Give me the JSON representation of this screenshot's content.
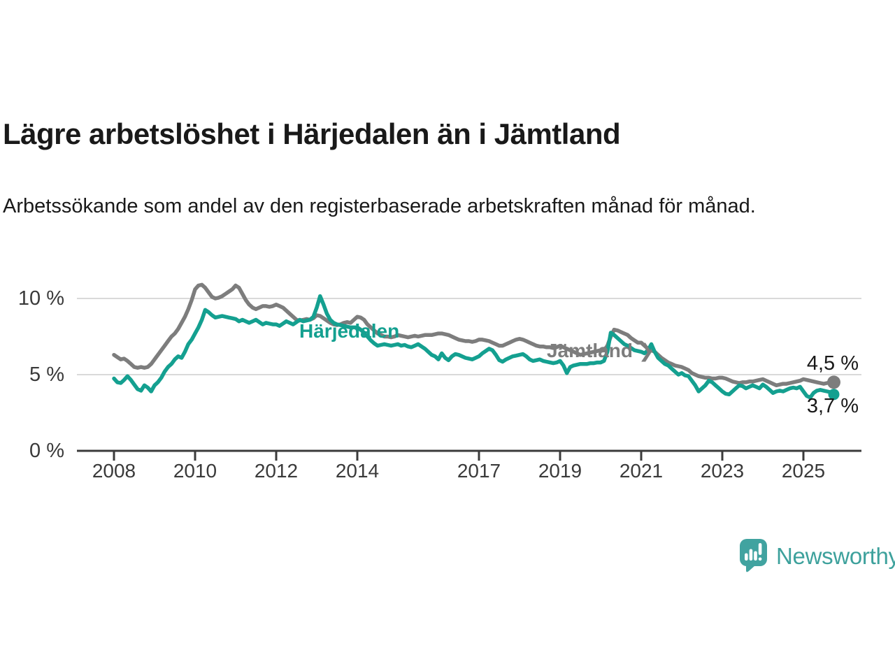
{
  "header": {
    "title": "Lägre arbetslöshet i Härjedalen än i Jämtland",
    "subtitle": "Arbetssökande som andel av den registerbaserade arbetskraften månad för månad."
  },
  "annotations": {
    "arrow_glyph": "❯"
  },
  "footer": {
    "brand": "Newsworthy"
  },
  "colors": {
    "harjedalen": "#14a090",
    "jamtland": "#7d7d7d",
    "axis": "#3b3b3b",
    "grid": "#d9d9d9",
    "text": "#191919",
    "logo": "#3da19c"
  },
  "chart_data": {
    "type": "line",
    "title": "Lägre arbetslöshet i Härjedalen än i Jämtland",
    "xlabel": "",
    "ylabel": "Arbetssökande som andel av den registerbaserade arbetskraften",
    "x_unit": "month",
    "x_start": "2008-01",
    "x_end": "2025-10",
    "x_range_years": [
      2008,
      2026.4
    ],
    "ylim": [
      0,
      11.5
    ],
    "grid": "horizontal",
    "legend_position": "inline-labels",
    "x_ticks": [
      2008,
      2010,
      2012,
      2014,
      2017,
      2019,
      2021,
      2023,
      2025
    ],
    "y_ticks": [
      {
        "value": 0,
        "label": "0 %"
      },
      {
        "value": 5,
        "label": "5 %"
      },
      {
        "value": 10,
        "label": "10 %"
      }
    ],
    "series": [
      {
        "name": "Jämtland",
        "color": "#7d7d7d",
        "end_value": 4.5,
        "end_label": "4,5 %",
        "values": [
          6.3,
          6.15,
          6.0,
          6.05,
          5.9,
          5.7,
          5.5,
          5.45,
          5.5,
          5.45,
          5.5,
          5.7,
          6.0,
          6.3,
          6.6,
          6.9,
          7.2,
          7.5,
          7.7,
          8.0,
          8.4,
          8.8,
          9.3,
          9.9,
          10.6,
          10.85,
          10.9,
          10.7,
          10.4,
          10.1,
          10.0,
          10.05,
          10.15,
          10.3,
          10.45,
          10.6,
          10.85,
          10.7,
          10.3,
          9.9,
          9.6,
          9.4,
          9.3,
          9.4,
          9.5,
          9.5,
          9.45,
          9.5,
          9.6,
          9.5,
          9.4,
          9.2,
          9.0,
          8.8,
          8.6,
          8.55,
          8.6,
          8.65,
          8.6,
          8.7,
          8.9,
          8.85,
          8.7,
          8.55,
          8.4,
          8.3,
          8.25,
          8.3,
          8.4,
          8.45,
          8.4,
          8.6,
          8.8,
          8.75,
          8.6,
          8.3,
          8.1,
          7.9,
          7.7,
          7.6,
          7.5,
          7.5,
          7.45,
          7.5,
          7.6,
          7.55,
          7.5,
          7.45,
          7.5,
          7.55,
          7.5,
          7.55,
          7.6,
          7.6,
          7.6,
          7.65,
          7.7,
          7.7,
          7.65,
          7.6,
          7.5,
          7.4,
          7.3,
          7.25,
          7.2,
          7.2,
          7.15,
          7.2,
          7.3,
          7.3,
          7.25,
          7.2,
          7.1,
          7.0,
          6.9,
          6.9,
          7.0,
          7.1,
          7.2,
          7.3,
          7.35,
          7.3,
          7.2,
          7.1,
          7.0,
          6.9,
          6.85,
          6.85,
          6.8,
          6.8,
          6.75,
          6.8,
          6.9,
          6.8,
          6.7,
          6.6,
          6.5,
          6.4,
          6.3,
          6.35,
          6.4,
          6.45,
          6.5,
          6.55,
          6.6,
          6.6,
          6.9,
          7.5,
          7.95,
          7.9,
          7.8,
          7.7,
          7.6,
          7.4,
          7.25,
          7.1,
          7.1,
          6.9,
          6.7,
          6.6,
          6.5,
          6.3,
          6.1,
          5.95,
          5.8,
          5.7,
          5.6,
          5.55,
          5.5,
          5.4,
          5.3,
          5.1,
          5.0,
          4.9,
          4.85,
          4.8,
          4.8,
          4.75,
          4.75,
          4.8,
          4.8,
          4.75,
          4.65,
          4.55,
          4.5,
          4.45,
          4.5,
          4.5,
          4.55,
          4.55,
          4.6,
          4.65,
          4.7,
          4.6,
          4.5,
          4.4,
          4.3,
          4.35,
          4.4,
          4.4,
          4.45,
          4.5,
          4.55,
          4.6,
          4.7,
          4.65,
          4.6,
          4.55,
          4.5,
          4.45,
          4.4,
          4.45,
          4.5,
          4.5
        ]
      },
      {
        "name": "Härjedalen",
        "color": "#14a090",
        "end_value": 3.7,
        "end_label": "3,7 %",
        "values": [
          4.75,
          4.5,
          4.45,
          4.65,
          4.9,
          4.65,
          4.35,
          4.05,
          3.95,
          4.3,
          4.15,
          3.9,
          4.3,
          4.5,
          4.8,
          5.2,
          5.5,
          5.7,
          6.0,
          6.2,
          6.1,
          6.5,
          7.0,
          7.3,
          7.7,
          8.1,
          8.6,
          9.25,
          9.1,
          8.9,
          8.75,
          8.8,
          8.85,
          8.8,
          8.75,
          8.7,
          8.65,
          8.5,
          8.6,
          8.5,
          8.4,
          8.5,
          8.6,
          8.45,
          8.3,
          8.4,
          8.35,
          8.3,
          8.3,
          8.2,
          8.35,
          8.5,
          8.4,
          8.3,
          8.45,
          8.6,
          8.5,
          8.55,
          8.6,
          8.8,
          9.4,
          10.15,
          9.6,
          9.0,
          8.6,
          8.4,
          8.3,
          8.25,
          8.2,
          8.15,
          8.1,
          8.1,
          8.1,
          7.95,
          7.75,
          7.5,
          7.25,
          7.05,
          6.9,
          6.95,
          7.0,
          6.95,
          6.9,
          6.95,
          7.0,
          6.9,
          6.95,
          6.85,
          6.8,
          6.9,
          7.0,
          6.85,
          6.7,
          6.5,
          6.3,
          6.2,
          6.0,
          6.4,
          6.1,
          5.95,
          6.2,
          6.35,
          6.3,
          6.2,
          6.1,
          6.05,
          6.0,
          6.1,
          6.2,
          6.4,
          6.55,
          6.7,
          6.6,
          6.3,
          5.95,
          5.85,
          6.0,
          6.1,
          6.2,
          6.25,
          6.3,
          6.35,
          6.2,
          6.0,
          5.9,
          5.95,
          6.0,
          5.9,
          5.85,
          5.8,
          5.75,
          5.8,
          5.9,
          5.6,
          5.1,
          5.5,
          5.6,
          5.65,
          5.7,
          5.7,
          5.7,
          5.75,
          5.75,
          5.8,
          5.8,
          5.9,
          6.5,
          7.75,
          7.6,
          7.4,
          7.2,
          7.0,
          6.9,
          6.75,
          6.6,
          6.55,
          6.5,
          6.4,
          6.6,
          7.0,
          6.5,
          6.1,
          5.9,
          5.7,
          5.6,
          5.4,
          5.2,
          5.0,
          5.1,
          4.95,
          4.9,
          4.6,
          4.3,
          3.9,
          4.1,
          4.3,
          4.6,
          4.5,
          4.3,
          4.1,
          3.9,
          3.75,
          3.7,
          3.9,
          4.1,
          4.3,
          4.25,
          4.1,
          4.2,
          4.3,
          4.2,
          4.1,
          4.35,
          4.2,
          4.0,
          3.8,
          3.9,
          3.95,
          3.9,
          4.0,
          4.1,
          4.15,
          4.1,
          4.2,
          3.9,
          3.6,
          3.5,
          3.8,
          3.95,
          4.0,
          3.95,
          3.9,
          3.85,
          3.7
        ]
      }
    ]
  }
}
